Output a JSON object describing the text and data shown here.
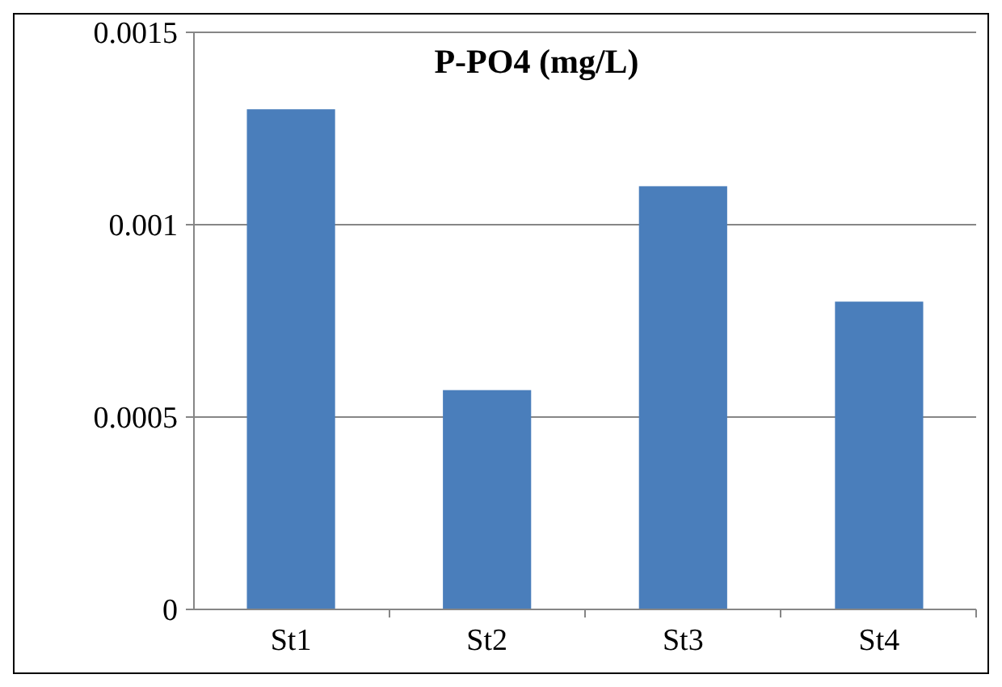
{
  "chart_data": {
    "type": "bar",
    "title": "P-PO4 (mg/L)",
    "categories": [
      "St1",
      "St2",
      "St3",
      "St4"
    ],
    "values": [
      0.0013,
      0.00057,
      0.0011,
      0.0008
    ],
    "color": "#4a7ebb",
    "ylim": [
      0,
      0.0015
    ],
    "yticks": [
      0,
      0.0005,
      0.001,
      0.0015
    ],
    "grid": "y"
  }
}
